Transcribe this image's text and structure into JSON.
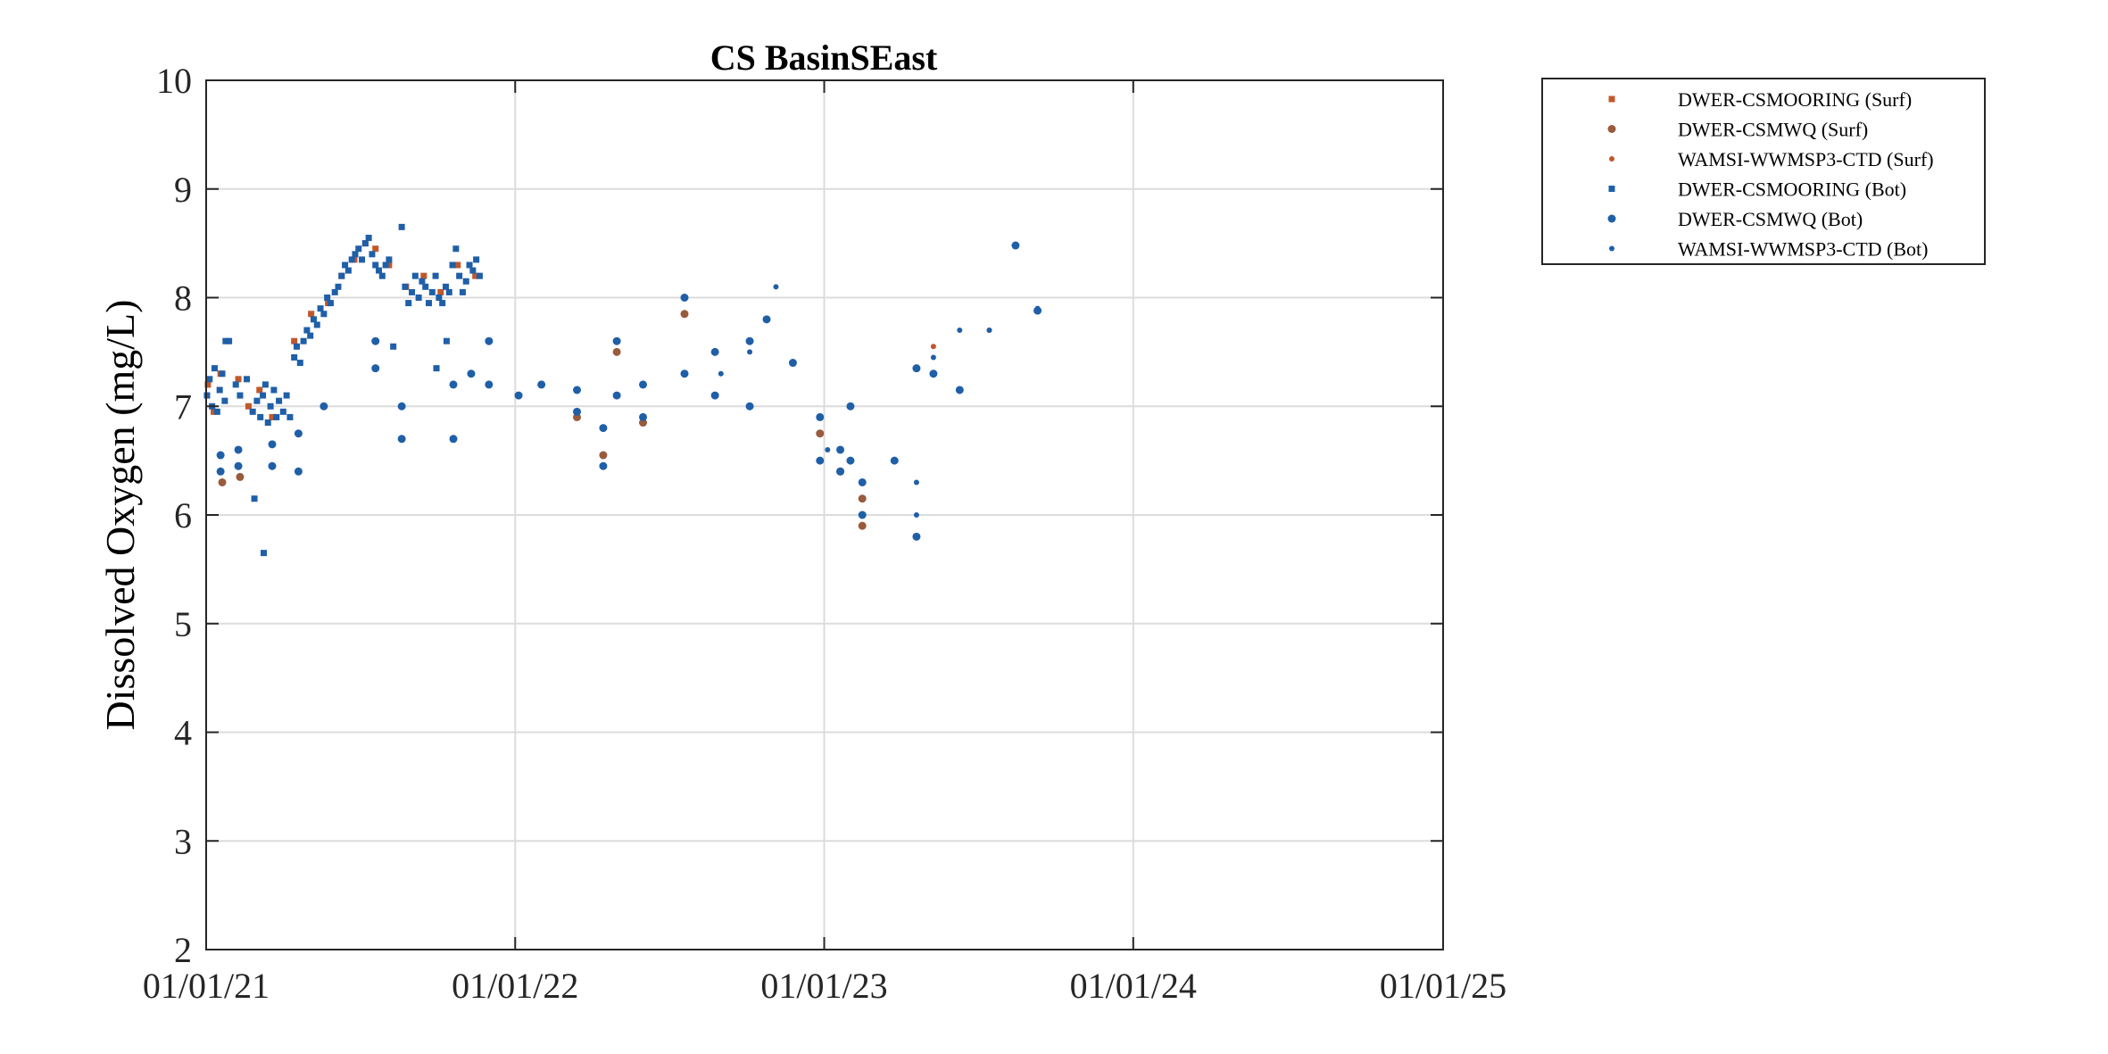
{
  "chart_data": {
    "type": "scatter",
    "title": "CS BasinSEast",
    "xlabel": "",
    "ylabel": "Dissolved Oxygen (mg/L)",
    "x_is_date": true,
    "xlim": [
      "2021-01-01",
      "2025-01-01"
    ],
    "ylim": [
      2,
      10
    ],
    "grid": true,
    "x_ticks": [
      "2021-01-01",
      "2022-01-01",
      "2023-01-01",
      "2024-01-01",
      "2025-01-01"
    ],
    "x_tick_labels": [
      "01/01/21",
      "01/01/22",
      "01/01/23",
      "01/01/24",
      "01/01/25"
    ],
    "y_ticks": [
      2,
      3,
      4,
      5,
      6,
      7,
      8,
      9,
      10
    ],
    "y_tick_labels": [
      "2",
      "3",
      "4",
      "5",
      "6",
      "7",
      "8",
      "9",
      "10"
    ],
    "legend_position": "outside-top-right",
    "colors": {
      "surf": "#c0582b",
      "bot": "#1f5fa8",
      "axis": "#262626",
      "grid": "#dcdcdc"
    },
    "series": [
      {
        "name": "DWER-CSMOORING (Surf)",
        "marker": "square",
        "color": "#c0582b",
        "points": [
          [
            "2021-01-03",
            7.2
          ],
          [
            "2021-01-10",
            6.95
          ],
          [
            "2021-01-18",
            7.3
          ],
          [
            "2021-02-08",
            7.25
          ],
          [
            "2021-02-20",
            7.0
          ],
          [
            "2021-03-05",
            7.15
          ],
          [
            "2021-03-20",
            6.9
          ],
          [
            "2021-04-15",
            7.6
          ],
          [
            "2021-05-05",
            7.85
          ],
          [
            "2021-05-25",
            7.95
          ],
          [
            "2021-06-10",
            8.2
          ],
          [
            "2021-06-25",
            8.35
          ],
          [
            "2021-07-08",
            8.5
          ],
          [
            "2021-07-20",
            8.45
          ],
          [
            "2021-08-05",
            8.3
          ],
          [
            "2021-08-25",
            8.1
          ],
          [
            "2021-09-15",
            8.2
          ],
          [
            "2021-10-05",
            8.05
          ],
          [
            "2021-10-25",
            8.3
          ],
          [
            "2021-11-15",
            8.2
          ]
        ]
      },
      {
        "name": "DWER-CSMWQ (Surf)",
        "marker": "circle",
        "color": "#9a5a3c",
        "points": [
          [
            "2021-01-20",
            6.3
          ],
          [
            "2021-02-10",
            6.35
          ],
          [
            "2022-03-15",
            6.9
          ],
          [
            "2022-04-15",
            6.55
          ],
          [
            "2022-05-01",
            7.5
          ],
          [
            "2022-06-01",
            6.85
          ],
          [
            "2022-07-20",
            7.85
          ],
          [
            "2022-12-27",
            6.75
          ],
          [
            "2023-01-20",
            6.4
          ],
          [
            "2023-02-15",
            5.9
          ],
          [
            "2023-02-15",
            6.15
          ]
        ]
      },
      {
        "name": "WAMSI-WWMSP3-CTD (Surf)",
        "marker": "dot",
        "color": "#c0582b",
        "points": [
          [
            "2023-05-10",
            7.55
          ],
          [
            "2023-07-15",
            7.7
          ]
        ]
      },
      {
        "name": "DWER-CSMOORING (Bot)",
        "marker": "square",
        "color": "#1f5fa8",
        "points": [
          [
            "2021-01-02",
            7.1
          ],
          [
            "2021-01-05",
            7.25
          ],
          [
            "2021-01-08",
            7.0
          ],
          [
            "2021-01-11",
            7.35
          ],
          [
            "2021-01-14",
            6.95
          ],
          [
            "2021-01-17",
            7.15
          ],
          [
            "2021-01-20",
            7.3
          ],
          [
            "2021-01-23",
            7.05
          ],
          [
            "2021-01-28",
            7.6
          ],
          [
            "2021-02-05",
            7.2
          ],
          [
            "2021-02-10",
            7.1
          ],
          [
            "2021-02-18",
            7.25
          ],
          [
            "2021-02-25",
            6.95
          ],
          [
            "2021-03-02",
            7.05
          ],
          [
            "2021-03-06",
            6.9
          ],
          [
            "2021-03-09",
            7.1
          ],
          [
            "2021-03-12",
            7.2
          ],
          [
            "2021-03-15",
            6.85
          ],
          [
            "2021-03-18",
            7.0
          ],
          [
            "2021-03-22",
            7.15
          ],
          [
            "2021-03-25",
            6.9
          ],
          [
            "2021-03-28",
            7.05
          ],
          [
            "2021-04-02",
            6.95
          ],
          [
            "2021-04-06",
            7.1
          ],
          [
            "2021-04-10",
            6.9
          ],
          [
            "2021-04-15",
            7.45
          ],
          [
            "2021-04-18",
            7.55
          ],
          [
            "2021-04-22",
            7.4
          ],
          [
            "2021-04-26",
            7.6
          ],
          [
            "2021-04-30",
            7.7
          ],
          [
            "2021-05-04",
            7.65
          ],
          [
            "2021-05-08",
            7.8
          ],
          [
            "2021-05-12",
            7.75
          ],
          [
            "2021-05-16",
            7.9
          ],
          [
            "2021-05-20",
            7.85
          ],
          [
            "2021-05-24",
            8.0
          ],
          [
            "2021-05-28",
            7.95
          ],
          [
            "2021-06-02",
            8.05
          ],
          [
            "2021-06-06",
            8.1
          ],
          [
            "2021-06-10",
            8.2
          ],
          [
            "2021-06-14",
            8.3
          ],
          [
            "2021-06-18",
            8.25
          ],
          [
            "2021-06-22",
            8.35
          ],
          [
            "2021-06-26",
            8.4
          ],
          [
            "2021-06-30",
            8.45
          ],
          [
            "2021-07-04",
            8.35
          ],
          [
            "2021-07-08",
            8.5
          ],
          [
            "2021-07-12",
            8.55
          ],
          [
            "2021-07-16",
            8.4
          ],
          [
            "2021-07-20",
            8.3
          ],
          [
            "2021-07-24",
            8.25
          ],
          [
            "2021-07-28",
            8.2
          ],
          [
            "2021-08-01",
            8.3
          ],
          [
            "2021-08-05",
            8.35
          ],
          [
            "2021-08-20",
            8.65
          ],
          [
            "2021-08-24",
            8.1
          ],
          [
            "2021-08-28",
            7.95
          ],
          [
            "2021-09-01",
            8.05
          ],
          [
            "2021-09-05",
            8.2
          ],
          [
            "2021-09-09",
            8.0
          ],
          [
            "2021-09-13",
            8.15
          ],
          [
            "2021-09-17",
            8.1
          ],
          [
            "2021-09-21",
            7.95
          ],
          [
            "2021-09-25",
            8.05
          ],
          [
            "2021-09-29",
            8.2
          ],
          [
            "2021-10-03",
            8.0
          ],
          [
            "2021-10-07",
            7.95
          ],
          [
            "2021-10-11",
            8.1
          ],
          [
            "2021-10-15",
            8.05
          ],
          [
            "2021-10-19",
            8.3
          ],
          [
            "2021-10-23",
            8.45
          ],
          [
            "2021-10-27",
            8.2
          ],
          [
            "2021-10-31",
            8.05
          ],
          [
            "2021-11-04",
            8.15
          ],
          [
            "2021-11-08",
            8.3
          ],
          [
            "2021-11-12",
            8.25
          ],
          [
            "2021-11-16",
            8.35
          ],
          [
            "2021-11-20",
            8.2
          ],
          [
            "2021-02-27",
            6.15
          ],
          [
            "2021-03-10",
            5.65
          ],
          [
            "2021-01-24",
            7.6
          ],
          [
            "2021-08-10",
            7.55
          ],
          [
            "2021-09-30",
            7.35
          ],
          [
            "2021-10-12",
            7.6
          ]
        ]
      },
      {
        "name": "DWER-CSMWQ (Bot)",
        "marker": "circle",
        "color": "#1f5fa8",
        "points": [
          [
            "2021-01-18",
            6.4
          ],
          [
            "2021-01-18",
            6.55
          ],
          [
            "2021-02-08",
            6.45
          ],
          [
            "2021-02-08",
            6.6
          ],
          [
            "2021-03-20",
            6.45
          ],
          [
            "2021-03-20",
            6.65
          ],
          [
            "2021-04-20",
            6.4
          ],
          [
            "2021-04-20",
            6.75
          ],
          [
            "2021-05-20",
            7.0
          ],
          [
            "2021-07-20",
            7.35
          ],
          [
            "2021-07-20",
            7.6
          ],
          [
            "2021-08-20",
            6.7
          ],
          [
            "2021-08-20",
            7.0
          ],
          [
            "2021-10-20",
            6.7
          ],
          [
            "2021-10-20",
            7.2
          ],
          [
            "2021-11-10",
            7.3
          ],
          [
            "2021-12-01",
            7.2
          ],
          [
            "2021-12-01",
            7.6
          ],
          [
            "2022-01-05",
            7.1
          ],
          [
            "2022-02-01",
            7.2
          ],
          [
            "2022-03-15",
            6.95
          ],
          [
            "2022-03-15",
            7.15
          ],
          [
            "2022-04-15",
            6.45
          ],
          [
            "2022-04-15",
            6.8
          ],
          [
            "2022-05-01",
            7.1
          ],
          [
            "2022-05-01",
            7.6
          ],
          [
            "2022-06-01",
            6.9
          ],
          [
            "2022-06-01",
            7.2
          ],
          [
            "2022-07-20",
            7.3
          ],
          [
            "2022-07-20",
            8.0
          ],
          [
            "2022-08-25",
            7.1
          ],
          [
            "2022-08-25",
            7.5
          ],
          [
            "2022-10-05",
            7.0
          ],
          [
            "2022-10-05",
            7.6
          ],
          [
            "2022-10-25",
            7.8
          ],
          [
            "2022-11-25",
            7.4
          ],
          [
            "2022-12-27",
            6.5
          ],
          [
            "2022-12-27",
            6.9
          ],
          [
            "2023-01-20",
            6.4
          ],
          [
            "2023-01-20",
            6.6
          ],
          [
            "2023-02-01",
            6.5
          ],
          [
            "2023-02-01",
            7.0
          ],
          [
            "2023-02-15",
            6.0
          ],
          [
            "2023-02-15",
            6.3
          ],
          [
            "2023-03-25",
            6.5
          ],
          [
            "2023-04-20",
            5.8
          ],
          [
            "2023-04-20",
            7.35
          ],
          [
            "2023-05-10",
            7.3
          ],
          [
            "2023-06-10",
            7.15
          ],
          [
            "2023-08-15",
            8.48
          ],
          [
            "2023-09-10",
            7.88
          ]
        ]
      },
      {
        "name": "WAMSI-WWMSP3-CTD (Bot)",
        "marker": "dot",
        "color": "#1f5fa8",
        "points": [
          [
            "2022-09-01",
            7.3
          ],
          [
            "2022-10-05",
            7.5
          ],
          [
            "2022-11-05",
            8.1
          ],
          [
            "2023-01-05",
            6.6
          ],
          [
            "2023-04-20",
            6.3
          ],
          [
            "2023-04-20",
            6.0
          ],
          [
            "2023-05-10",
            7.45
          ],
          [
            "2023-06-10",
            7.7
          ],
          [
            "2023-07-15",
            7.7
          ],
          [
            "2023-09-10",
            7.9
          ]
        ]
      }
    ]
  }
}
